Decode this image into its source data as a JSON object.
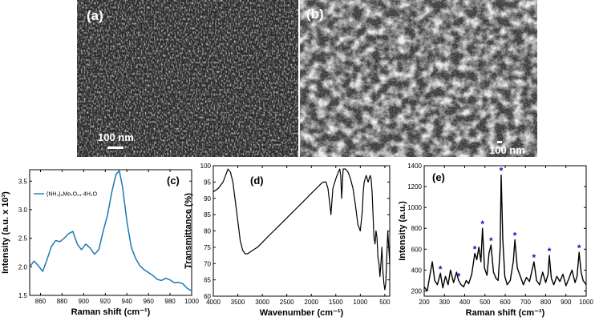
{
  "sem_panels": [
    {
      "label": "(a)",
      "scale_text": "100 nm"
    },
    {
      "label": "(b)",
      "scale_text": "100 nm"
    }
  ],
  "chart_data": [
    {
      "type": "line",
      "panel_label": "(c)",
      "title": "",
      "xlabel": "Raman shift (cm⁻¹)",
      "ylabel": "Intensity (a.u. x 10³)",
      "xlim": [
        850,
        1000
      ],
      "ylim": [
        1.5,
        3.7
      ],
      "x_ticks": [
        "860",
        "880",
        "900",
        "920",
        "940",
        "960",
        "980",
        "1000"
      ],
      "y_ticks": [
        "1.5",
        "2.0",
        "2.5",
        "3.0",
        "3.5"
      ],
      "legend": "(NH₄)₆Mo₇O₂₄·4H₂O",
      "series": [
        {
          "name": "(NH₄)₆Mo₇O₂₄·4H₂O",
          "color": "#1f77b4",
          "x": [
            850,
            854,
            858,
            862,
            866,
            870,
            874,
            878,
            882,
            886,
            890,
            894,
            898,
            902,
            906,
            910,
            914,
            918,
            922,
            926,
            930,
            933,
            936,
            940,
            944,
            948,
            952,
            956,
            960,
            964,
            968,
            972,
            976,
            980,
            984,
            988,
            992,
            996,
            1000
          ],
          "y": [
            2.0,
            2.1,
            2.02,
            1.92,
            2.12,
            2.35,
            2.46,
            2.44,
            2.5,
            2.58,
            2.62,
            2.4,
            2.3,
            2.4,
            2.33,
            2.22,
            2.3,
            2.62,
            2.9,
            3.3,
            3.62,
            3.68,
            3.4,
            2.8,
            2.35,
            2.15,
            2.02,
            1.95,
            1.9,
            1.85,
            1.78,
            1.76,
            1.8,
            1.77,
            1.72,
            1.73,
            1.7,
            1.62,
            1.58
          ]
        }
      ]
    },
    {
      "type": "line",
      "panel_label": "(d)",
      "title": "",
      "xlabel": "Wavenumber (cm⁻¹)",
      "ylabel": "Transmittance (%)",
      "xlim": [
        4000,
        400
      ],
      "ylim": [
        60,
        100
      ],
      "x_ticks": [
        "4000",
        "3500",
        "3000",
        "2500",
        "2000",
        "1500",
        "1000",
        "500"
      ],
      "y_ticks": [
        "60",
        "65",
        "70",
        "75",
        "80",
        "85",
        "90",
        "95",
        "100"
      ],
      "series": [
        {
          "name": "",
          "color": "#000000",
          "x": [
            4000,
            3900,
            3800,
            3700,
            3650,
            3600,
            3550,
            3500,
            3450,
            3400,
            3350,
            3300,
            3200,
            3100,
            3000,
            2900,
            2800,
            2700,
            2600,
            2500,
            2400,
            2300,
            2200,
            2100,
            2000,
            1900,
            1800,
            1750,
            1700,
            1660,
            1620,
            1600,
            1560,
            1500,
            1450,
            1420,
            1400,
            1380,
            1350,
            1300,
            1250,
            1200,
            1150,
            1100,
            1050,
            1000,
            960,
            940,
            920,
            900,
            880,
            860,
            840,
            820,
            800,
            780,
            760,
            740,
            720,
            700,
            680,
            660,
            640,
            620,
            600,
            580,
            560,
            540,
            520,
            500,
            480,
            460,
            440,
            420,
            400
          ],
          "y": [
            92,
            93,
            95,
            99,
            98,
            95,
            89,
            83,
            77,
            74,
            73,
            73,
            74,
            75,
            76.5,
            78,
            79.5,
            81,
            82.5,
            84,
            85.5,
            87,
            88.5,
            90,
            91.5,
            93,
            94.5,
            95,
            95,
            93,
            88,
            85,
            93,
            96,
            98,
            99,
            97,
            90,
            99,
            99,
            98,
            96,
            93,
            88,
            82,
            80,
            86,
            92,
            95,
            96,
            97,
            96,
            95,
            96,
            97,
            96,
            92,
            85,
            78,
            76,
            80,
            78,
            72,
            70,
            66,
            70,
            75,
            68,
            64,
            62,
            64,
            72,
            80,
            75,
            70
          ]
        }
      ]
    },
    {
      "type": "line",
      "panel_label": "(e)",
      "title": "",
      "xlabel": "Raman shift (cm⁻¹)",
      "ylabel": "Intensity (a.u.)",
      "xlim": [
        200,
        1000
      ],
      "ylim": [
        150,
        1400
      ],
      "x_ticks": [
        "200",
        "300",
        "400",
        "500",
        "600",
        "700",
        "800",
        "900",
        "1000"
      ],
      "y_ticks": [
        "200",
        "400",
        "600",
        "800",
        "1000",
        "1200",
        "1400"
      ],
      "marker_color": "#1010c0",
      "peaks_marked": [
        280,
        370,
        450,
        488,
        530,
        580,
        648,
        742,
        818,
        965
      ],
      "series": [
        {
          "name": "",
          "color": "#000000",
          "x": [
            200,
            215,
            228,
            240,
            252,
            265,
            280,
            292,
            305,
            318,
            330,
            345,
            360,
            370,
            382,
            395,
            408,
            420,
            435,
            450,
            460,
            470,
            480,
            488,
            498,
            510,
            520,
            530,
            542,
            555,
            565,
            575,
            580,
            588,
            598,
            610,
            625,
            640,
            648,
            660,
            675,
            690,
            705,
            720,
            735,
            742,
            755,
            770,
            785,
            800,
            812,
            818,
            828,
            840,
            855,
            870,
            885,
            900,
            915,
            930,
            945,
            955,
            965,
            975,
            985,
            1000
          ],
          "y": [
            240,
            200,
            350,
            480,
            300,
            260,
            370,
            230,
            340,
            260,
            400,
            280,
            380,
            300,
            260,
            240,
            300,
            270,
            360,
            560,
            500,
            620,
            480,
            800,
            420,
            350,
            560,
            640,
            380,
            320,
            300,
            600,
            1310,
            700,
            340,
            260,
            300,
            480,
            690,
            420,
            340,
            260,
            330,
            290,
            420,
            480,
            300,
            260,
            380,
            280,
            360,
            540,
            320,
            260,
            340,
            290,
            360,
            250,
            320,
            400,
            280,
            340,
            570,
            380,
            300,
            260
          ]
        }
      ]
    }
  ]
}
